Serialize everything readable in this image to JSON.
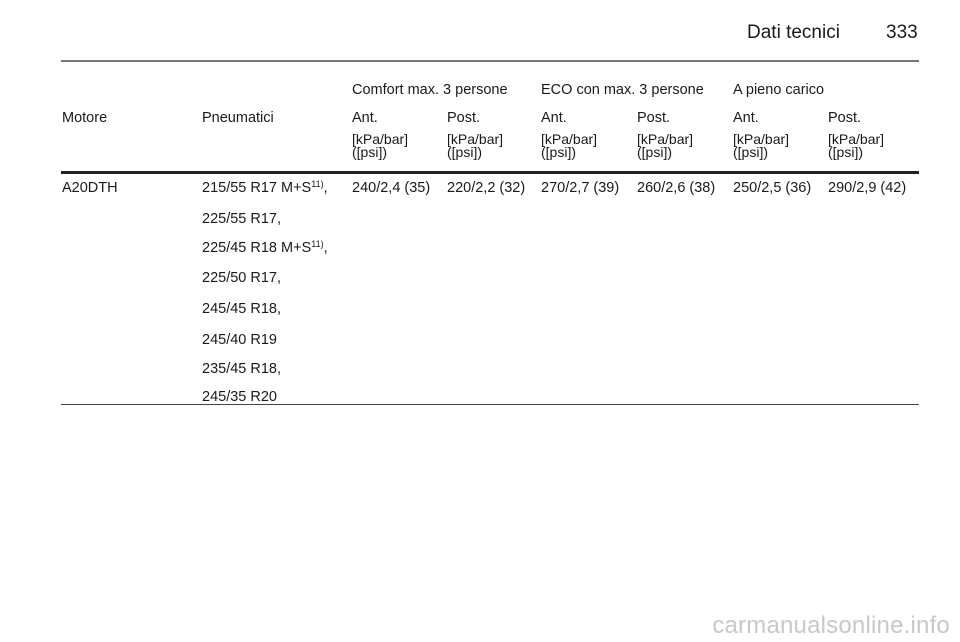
{
  "header": {
    "title": "Dati tecnici",
    "page_number": "333"
  },
  "table": {
    "group_headers": [
      "Comfort max. 3 persone",
      "ECO con max. 3 persone",
      "A pieno carico"
    ],
    "col_motore": "Motore",
    "col_pneumatici": "Pneumatici",
    "sub_headers": [
      "Ant.",
      "Post.",
      "Ant.",
      "Post.",
      "Ant.",
      "Post."
    ],
    "unit_line1": "[kPa/bar]",
    "unit_line2": "([psi])",
    "row": {
      "motore": "A20DTH",
      "tyres": [
        {
          "text": "215/55 R17 M+S",
          "note": "11)",
          "suffix": ","
        },
        {
          "text": "225/55 R17,"
        },
        {
          "text": "225/45 R18 M+S",
          "note": "11)",
          "suffix": ","
        },
        {
          "text": "225/50 R17,"
        },
        {
          "text": "245/45 R18,"
        },
        {
          "text": "245/40 R19"
        },
        {
          "text": "235/45 R18,"
        },
        {
          "text": "245/35 R20"
        }
      ],
      "values": [
        "240/2,4 (35)",
        "220/2,2 (32)",
        "270/2,7 (39)",
        "260/2,6 (38)",
        "250/2,5 (36)",
        "290/2,9 (42)"
      ]
    }
  },
  "watermark": "carmanualsonline.info"
}
